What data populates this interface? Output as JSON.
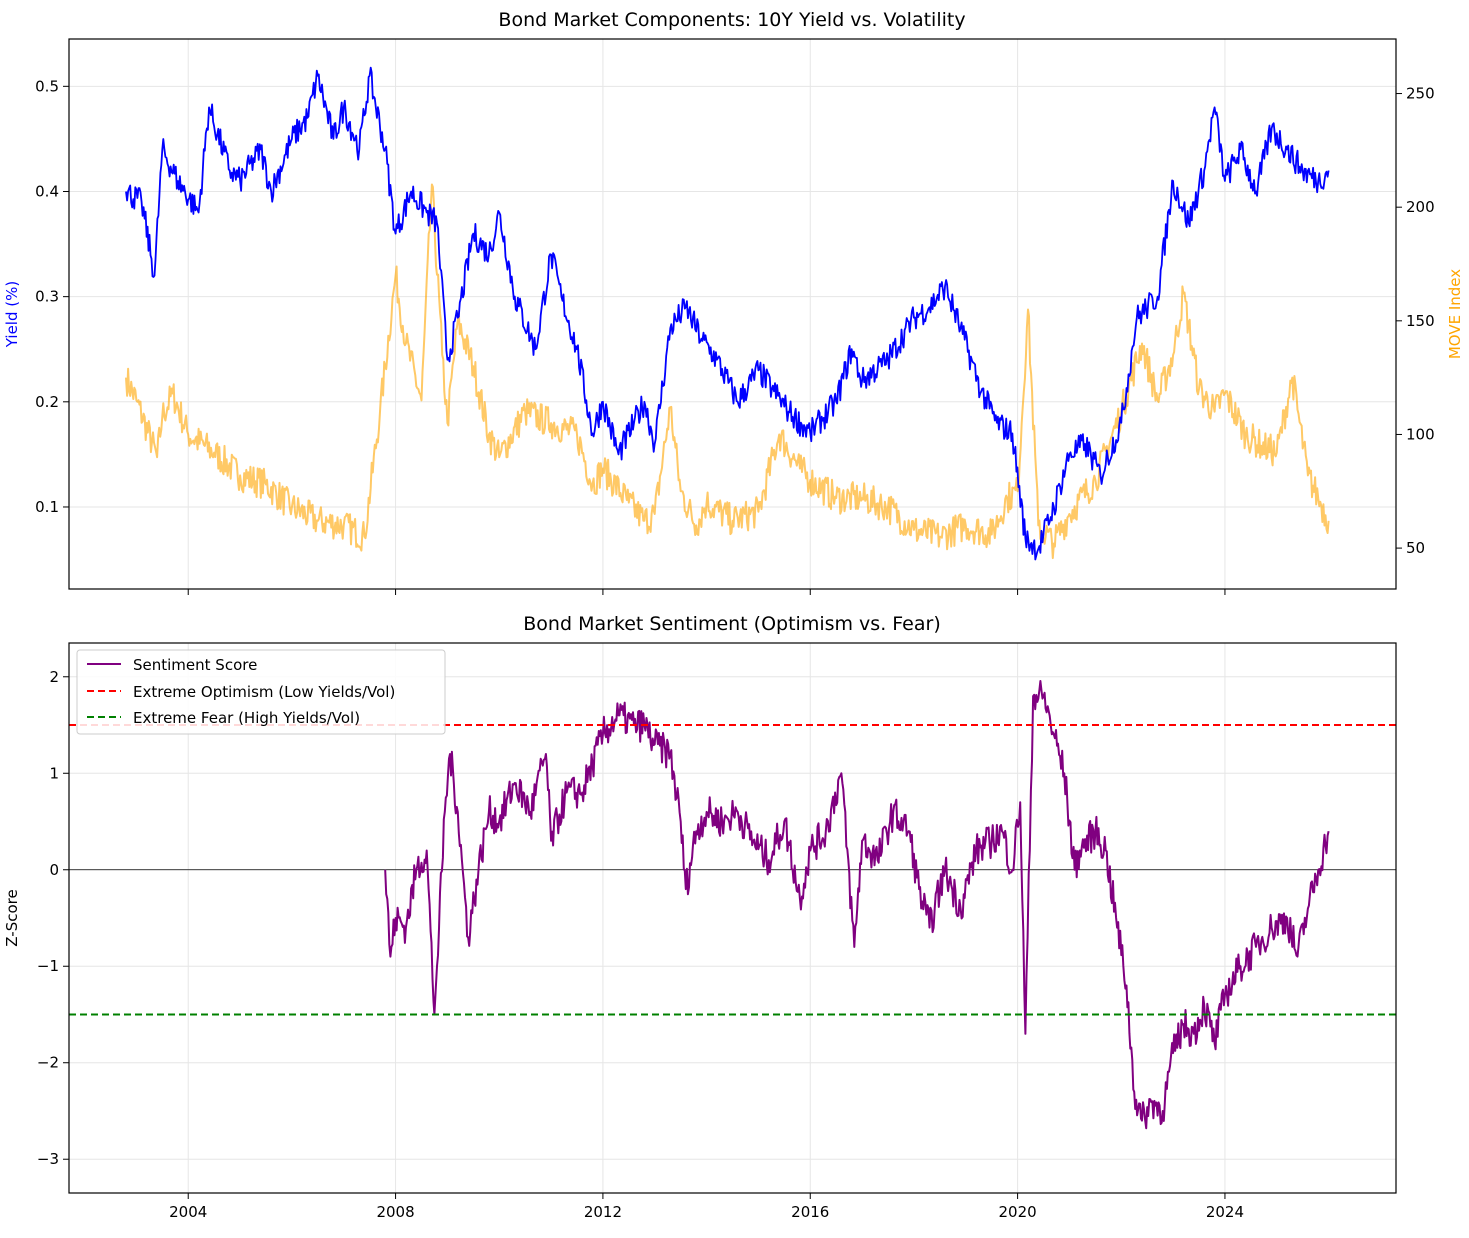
{
  "chart_data": [
    {
      "type": "line",
      "title": "Bond Market Components: 10Y Yield vs. Volatility",
      "xlabel": "",
      "ylabel": "Yield (%)",
      "ylabel_color": "#0000ff",
      "y2label": "MOVE Index",
      "y2label_color": "#ffa500",
      "xlim": [
        2001.7,
        2027.3
      ],
      "ylim": [
        0.022,
        0.545
      ],
      "y2lim": [
        32,
        274
      ],
      "y_ticks": [
        0.1,
        0.2,
        0.3,
        0.4,
        0.5
      ],
      "y2_ticks": [
        50,
        100,
        150,
        200,
        250
      ],
      "grid": true,
      "series": [
        {
          "name": "10Y Yield",
          "axis": "left",
          "color": "#0000ff",
          "x": [
            2002.8,
            2003.1,
            2003.35,
            2003.5,
            2003.8,
            2004.2,
            2004.4,
            2004.8,
            2005.0,
            2005.4,
            2005.6,
            2006.0,
            2006.3,
            2006.5,
            2006.8,
            2007.0,
            2007.3,
            2007.5,
            2007.8,
            2008.0,
            2008.3,
            2008.6,
            2008.8,
            2009.0,
            2009.2,
            2009.5,
            2009.8,
            2010.0,
            2010.3,
            2010.7,
            2011.0,
            2011.2,
            2011.5,
            2011.8,
            2012.0,
            2012.3,
            2012.6,
            2012.8,
            2013.0,
            2013.3,
            2013.6,
            2013.9,
            2014.2,
            2014.6,
            2015.0,
            2015.3,
            2015.6,
            2016.0,
            2016.5,
            2016.8,
            2017.0,
            2017.5,
            2018.0,
            2018.3,
            2018.6,
            2018.9,
            2019.3,
            2019.6,
            2019.9,
            2020.15,
            2020.4,
            2020.7,
            2021.0,
            2021.3,
            2021.6,
            2022.0,
            2022.3,
            2022.7,
            2023.0,
            2023.3,
            2023.6,
            2023.8,
            2024.0,
            2024.3,
            2024.6,
            2024.9,
            2025.2,
            2025.5,
            2025.8,
            2026.0
          ],
          "values": [
            0.4,
            0.39,
            0.32,
            0.44,
            0.41,
            0.38,
            0.48,
            0.42,
            0.41,
            0.44,
            0.4,
            0.45,
            0.47,
            0.51,
            0.45,
            0.48,
            0.44,
            0.51,
            0.44,
            0.36,
            0.4,
            0.38,
            0.37,
            0.24,
            0.28,
            0.36,
            0.34,
            0.38,
            0.3,
            0.25,
            0.34,
            0.3,
            0.25,
            0.17,
            0.2,
            0.15,
            0.18,
            0.2,
            0.16,
            0.27,
            0.29,
            0.26,
            0.24,
            0.2,
            0.23,
            0.21,
            0.19,
            0.17,
            0.2,
            0.25,
            0.22,
            0.24,
            0.28,
            0.29,
            0.31,
            0.27,
            0.21,
            0.18,
            0.17,
            0.07,
            0.06,
            0.1,
            0.15,
            0.16,
            0.13,
            0.18,
            0.28,
            0.3,
            0.41,
            0.37,
            0.42,
            0.48,
            0.41,
            0.44,
            0.4,
            0.46,
            0.44,
            0.42,
            0.41,
            0.42
          ]
        },
        {
          "name": "MOVE Index",
          "axis": "right",
          "color": "#ffa500",
          "x": [
            2002.8,
            2003.0,
            2003.4,
            2003.5,
            2003.7,
            2004.0,
            2004.5,
            2005.0,
            2005.5,
            2006.0,
            2006.5,
            2007.0,
            2007.4,
            2007.7,
            2008.0,
            2008.2,
            2008.5,
            2008.7,
            2008.9,
            2009.0,
            2009.2,
            2009.5,
            2009.8,
            2010.0,
            2010.5,
            2011.0,
            2011.5,
            2011.8,
            2012.0,
            2012.5,
            2012.8,
            2013.0,
            2013.3,
            2013.5,
            2013.8,
            2014.0,
            2014.5,
            2015.0,
            2015.4,
            2015.8,
            2016.0,
            2016.5,
            2017.0,
            2017.5,
            2018.0,
            2018.5,
            2019.0,
            2019.5,
            2019.8,
            2020.0,
            2020.2,
            2020.4,
            2020.7,
            2021.0,
            2021.5,
            2022.0,
            2022.4,
            2022.7,
            2023.0,
            2023.2,
            2023.5,
            2023.8,
            2024.0,
            2024.4,
            2024.7,
            2025.0,
            2025.3,
            2025.6,
            2025.8,
            2026.0
          ],
          "values": [
            125,
            115,
            90,
            108,
            118,
            100,
            92,
            82,
            78,
            68,
            62,
            60,
            55,
            110,
            170,
            140,
            115,
            210,
            135,
            105,
            150,
            130,
            100,
            90,
            110,
            105,
            100,
            78,
            85,
            70,
            62,
            65,
            112,
            75,
            60,
            70,
            62,
            66,
            100,
            85,
            80,
            72,
            72,
            68,
            58,
            55,
            60,
            56,
            72,
            75,
            155,
            60,
            52,
            65,
            80,
            110,
            140,
            115,
            135,
            162,
            120,
            110,
            118,
            100,
            95,
            92,
            125,
            82,
            72,
            62
          ]
        }
      ]
    },
    {
      "type": "line",
      "title": "Bond Market Sentiment (Optimism vs. Fear)",
      "xlabel": "",
      "ylabel": "Z-Score",
      "xlim": [
        2001.7,
        2027.3
      ],
      "ylim": [
        -3.35,
        2.35
      ],
      "x_ticks": [
        2004,
        2008,
        2012,
        2016,
        2020,
        2024
      ],
      "y_ticks": [
        -3,
        -2,
        -1,
        0,
        1,
        2
      ],
      "y_tick_labels": [
        "−3",
        "−2",
        "−1",
        "0",
        "1",
        "2"
      ],
      "grid": true,
      "legend_position": "upper-left",
      "series": [
        {
          "name": "Sentiment Score",
          "color": "#800080",
          "style": "solid",
          "x": [
            2007.8,
            2007.9,
            2008.0,
            2008.2,
            2008.4,
            2008.6,
            2008.75,
            2008.8,
            2008.95,
            2009.05,
            2009.2,
            2009.4,
            2009.6,
            2009.8,
            2010.0,
            2010.3,
            2010.6,
            2010.9,
            2011.0,
            2011.3,
            2011.6,
            2011.8,
            2012.0,
            2012.3,
            2012.6,
            2012.8,
            2013.0,
            2013.3,
            2013.5,
            2013.6,
            2013.8,
            2014.0,
            2014.3,
            2014.6,
            2014.9,
            2015.2,
            2015.5,
            2015.8,
            2016.0,
            2016.3,
            2016.6,
            2016.85,
            2017.0,
            2017.3,
            2017.6,
            2017.9,
            2018.1,
            2018.3,
            2018.6,
            2018.9,
            2019.2,
            2019.5,
            2019.7,
            2019.9,
            2020.05,
            2020.15,
            2020.3,
            2020.5,
            2020.7,
            2020.9,
            2021.1,
            2021.2,
            2021.5,
            2021.7,
            2021.9,
            2022.1,
            2022.25,
            2022.4,
            2022.6,
            2022.8,
            2023.0,
            2023.2,
            2023.4,
            2023.6,
            2023.8,
            2024.0,
            2024.3,
            2024.6,
            2024.9,
            2025.2,
            2025.4,
            2025.6,
            2025.8,
            2026.0
          ],
          "values": [
            0.0,
            -0.9,
            -0.5,
            -0.6,
            0.0,
            0.2,
            -1.5,
            -1.0,
            0.6,
            1.2,
            0.6,
            -0.7,
            0.0,
            0.6,
            0.5,
            0.9,
            0.6,
            1.2,
            0.3,
            0.8,
            0.8,
            1.1,
            1.4,
            1.6,
            1.5,
            1.5,
            1.3,
            1.2,
            0.5,
            -0.2,
            0.4,
            0.6,
            0.5,
            0.6,
            0.3,
            0.1,
            0.5,
            -0.3,
            0.2,
            0.4,
            1.0,
            -0.8,
            0.3,
            0.1,
            0.6,
            0.4,
            -0.2,
            -0.6,
            0.0,
            -0.4,
            0.2,
            0.3,
            0.4,
            0.0,
            0.7,
            -1.7,
            1.8,
            1.8,
            1.4,
            1.0,
            0.0,
            0.2,
            0.4,
            0.2,
            -0.5,
            -1.2,
            -2.3,
            -2.6,
            -2.4,
            -2.5,
            -1.9,
            -1.6,
            -1.7,
            -1.4,
            -1.8,
            -1.3,
            -1.0,
            -0.8,
            -0.6,
            -0.5,
            -0.9,
            -0.4,
            0.0,
            0.4
          ]
        },
        {
          "name": "Extreme Optimism (Low Yields/Vol)",
          "color": "#ff0000",
          "style": "dashed",
          "value": 1.5
        },
        {
          "name": "Extreme Fear (High Yields/Vol)",
          "color": "#008000",
          "style": "dashed",
          "value": -1.5
        }
      ]
    }
  ]
}
